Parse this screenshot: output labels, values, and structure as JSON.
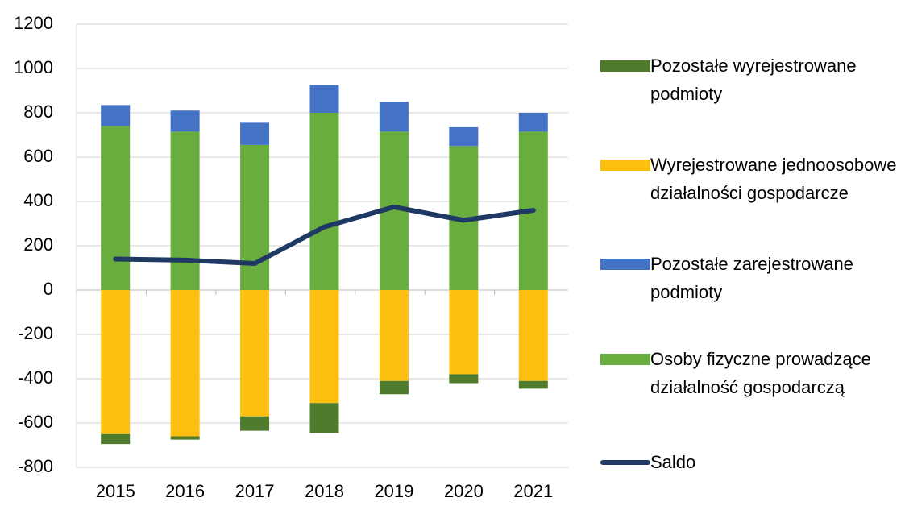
{
  "chart_data": {
    "type": "bar",
    "stacked": true,
    "categories": [
      "2015",
      "2016",
      "2017",
      "2018",
      "2019",
      "2020",
      "2021"
    ],
    "ylim": [
      -800,
      1200
    ],
    "yticks": [
      -800,
      -600,
      -400,
      -200,
      0,
      200,
      400,
      600,
      800,
      1000,
      1200
    ],
    "grid": true,
    "legend": "right",
    "series": [
      {
        "name": "Pozostałe wyrejestrowane podmioty",
        "type": "bar",
        "color": "#4f7b2c",
        "values": [
          -45,
          -15,
          -65,
          -135,
          -60,
          -40,
          -35
        ]
      },
      {
        "name": "Wyrejestrowane jednoosobowe działalności gospodarcze",
        "type": "bar",
        "color": "#fdc010",
        "values": [
          -650,
          -660,
          -570,
          -510,
          -410,
          -380,
          -410
        ]
      },
      {
        "name": "Pozostałe zarejestrowane podmioty",
        "type": "bar",
        "color": "#4472c4",
        "values": [
          95,
          95,
          100,
          125,
          135,
          85,
          85
        ]
      },
      {
        "name": "Osoby fizyczne prowadzące działalność gospodarczą",
        "type": "bar",
        "color": "#6aad3f",
        "values": [
          740,
          715,
          655,
          800,
          715,
          650,
          715
        ]
      },
      {
        "name": "Saldo",
        "type": "line",
        "color": "#1f3864",
        "values": [
          140,
          135,
          120,
          285,
          375,
          315,
          360
        ]
      }
    ]
  }
}
